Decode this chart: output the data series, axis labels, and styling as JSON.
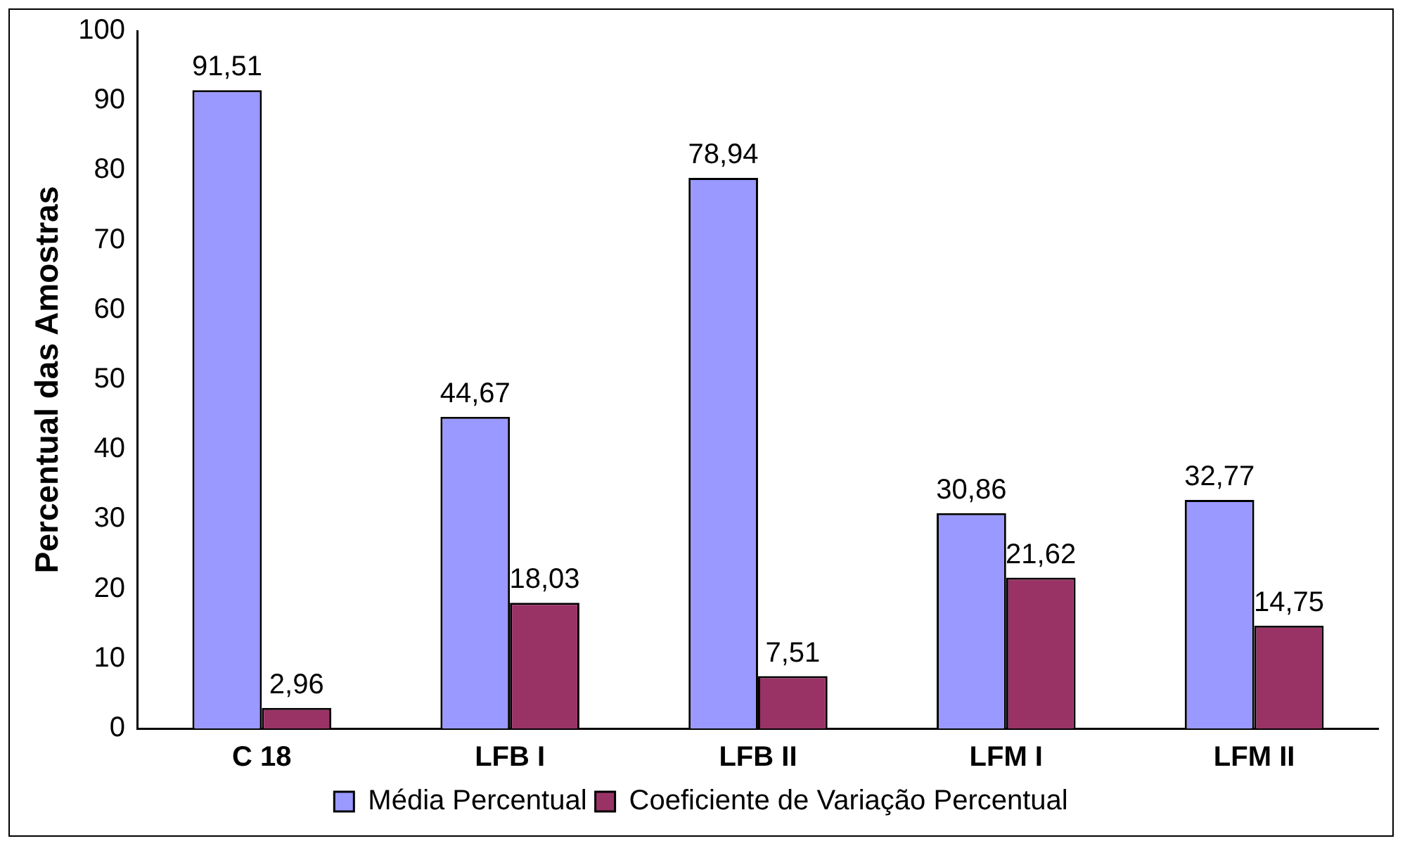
{
  "chart_data": {
    "type": "bar",
    "ylabel": "Percentual das Amostras",
    "categories": [
      "C 18",
      "LFB I",
      "LFB II",
      "LFM I",
      "LFM II"
    ],
    "series": [
      {
        "name": "Média Percentual",
        "color": "#9999ff",
        "values": [
          91.51,
          44.67,
          78.94,
          30.86,
          32.77
        ],
        "value_labels": [
          "91,51",
          "44,67",
          "78,94",
          "30,86",
          "32,77"
        ]
      },
      {
        "name": "Coeficiente de Variação Percentual",
        "color": "#993366",
        "values": [
          2.96,
          18.03,
          7.51,
          21.62,
          14.75
        ],
        "value_labels": [
          "2,96",
          "18,03",
          "7,51",
          "21,62",
          "14,75"
        ]
      }
    ],
    "ylim": [
      0,
      100
    ],
    "yticks": [
      0,
      10,
      20,
      30,
      40,
      50,
      60,
      70,
      80,
      90,
      100
    ],
    "grid": false,
    "legend": "bottom"
  }
}
